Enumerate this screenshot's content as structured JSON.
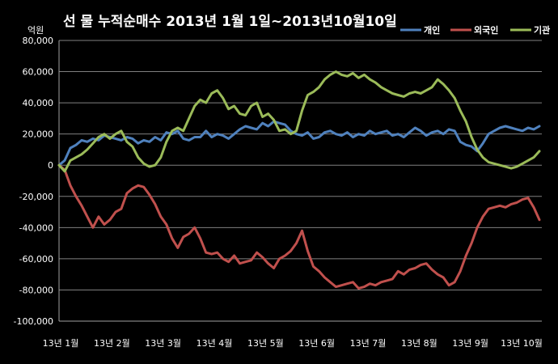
{
  "chart_data": {
    "type": "line",
    "title": "선 물 누적순매수 2013년 1월 1일~2013년10월10일",
    "unit_label": "억원",
    "ylim": [
      -100000,
      80000
    ],
    "y_ticks": [
      "80,000",
      "60,000",
      "40,000",
      "20,000",
      "0",
      "-20,000",
      "-40,000",
      "-60,000",
      "-80,000",
      "-100,000"
    ],
    "y_tick_values": [
      80000,
      60000,
      40000,
      20000,
      0,
      -20000,
      -40000,
      -60000,
      -80000,
      -100000
    ],
    "x_ticks": [
      "13년 1월",
      "13년 2월",
      "13년 3월",
      "13년 4월",
      "13년 5월",
      "13년 6월",
      "13년 7월",
      "13년 8월",
      "13년 9월",
      "13년 10월"
    ],
    "legend_position": "top-right",
    "grid": true,
    "series": [
      {
        "name": "개인",
        "color": "#4f81bd",
        "values": [
          0,
          3000,
          11000,
          13000,
          16000,
          15000,
          17000,
          16000,
          19000,
          18000,
          17000,
          16000,
          18000,
          17000,
          14000,
          16000,
          15000,
          18000,
          16000,
          21000,
          20000,
          22000,
          17000,
          16000,
          18000,
          18000,
          22000,
          18000,
          20000,
          19000,
          17000,
          20000,
          23000,
          25000,
          24000,
          23000,
          27000,
          25000,
          28000,
          27000,
          26000,
          22000,
          20000,
          19000,
          21000,
          17000,
          18000,
          21000,
          22000,
          20000,
          19000,
          21000,
          18000,
          20000,
          19000,
          22000,
          20000,
          21000,
          22000,
          19000,
          20000,
          18000,
          21000,
          24000,
          22000,
          19000,
          21000,
          22000,
          20000,
          23000,
          22000,
          15000,
          13000,
          12000,
          9000,
          14000,
          20000,
          22000,
          24000,
          25000,
          24000,
          23000,
          22000,
          24000,
          23000,
          25000
        ]
      },
      {
        "name": "외국인",
        "color": "#c0504d",
        "values": [
          0,
          -3000,
          -13000,
          -20000,
          -26000,
          -33000,
          -40000,
          -33000,
          -38000,
          -35000,
          -30000,
          -28000,
          -18000,
          -15000,
          -13000,
          -14000,
          -19000,
          -25000,
          -33000,
          -38000,
          -47000,
          -53000,
          -46000,
          -44000,
          -40000,
          -47000,
          -56000,
          -57000,
          -56000,
          -60000,
          -62000,
          -58000,
          -63000,
          -62000,
          -61000,
          -56000,
          -59000,
          -63000,
          -66000,
          -60000,
          -58000,
          -55000,
          -50000,
          -42000,
          -55000,
          -65000,
          -68000,
          -72000,
          -75000,
          -78000,
          -77000,
          -76000,
          -75000,
          -79000,
          -78000,
          -76000,
          -77000,
          -75000,
          -74000,
          -73000,
          -68000,
          -70000,
          -67000,
          -66000,
          -64000,
          -63000,
          -67000,
          -70000,
          -72000,
          -77000,
          -75000,
          -68000,
          -58000,
          -50000,
          -40000,
          -33000,
          -28000,
          -27000,
          -26000,
          -27000,
          -25000,
          -24000,
          -22000,
          -21000,
          -27000,
          -35000
        ]
      },
      {
        "name": "기관",
        "color": "#9bbb59",
        "values": [
          0,
          -4000,
          3000,
          5000,
          7000,
          10000,
          14000,
          18000,
          20000,
          17000,
          20000,
          22000,
          15000,
          12000,
          5000,
          1000,
          -1000,
          0,
          5000,
          15000,
          22000,
          24000,
          22000,
          30000,
          38000,
          42000,
          40000,
          46000,
          48000,
          43000,
          36000,
          38000,
          33000,
          32000,
          38000,
          40000,
          31000,
          33000,
          29000,
          22000,
          23000,
          20000,
          22000,
          35000,
          45000,
          47000,
          50000,
          55000,
          58000,
          60000,
          58000,
          57000,
          59000,
          56000,
          58000,
          55000,
          53000,
          50000,
          48000,
          46000,
          45000,
          44000,
          46000,
          47000,
          46000,
          48000,
          50000,
          55000,
          52000,
          48000,
          43000,
          35000,
          28000,
          18000,
          10000,
          5000,
          2000,
          1000,
          0,
          -1000,
          -2000,
          -1000,
          1000,
          3000,
          5000,
          9000
        ]
      }
    ]
  }
}
